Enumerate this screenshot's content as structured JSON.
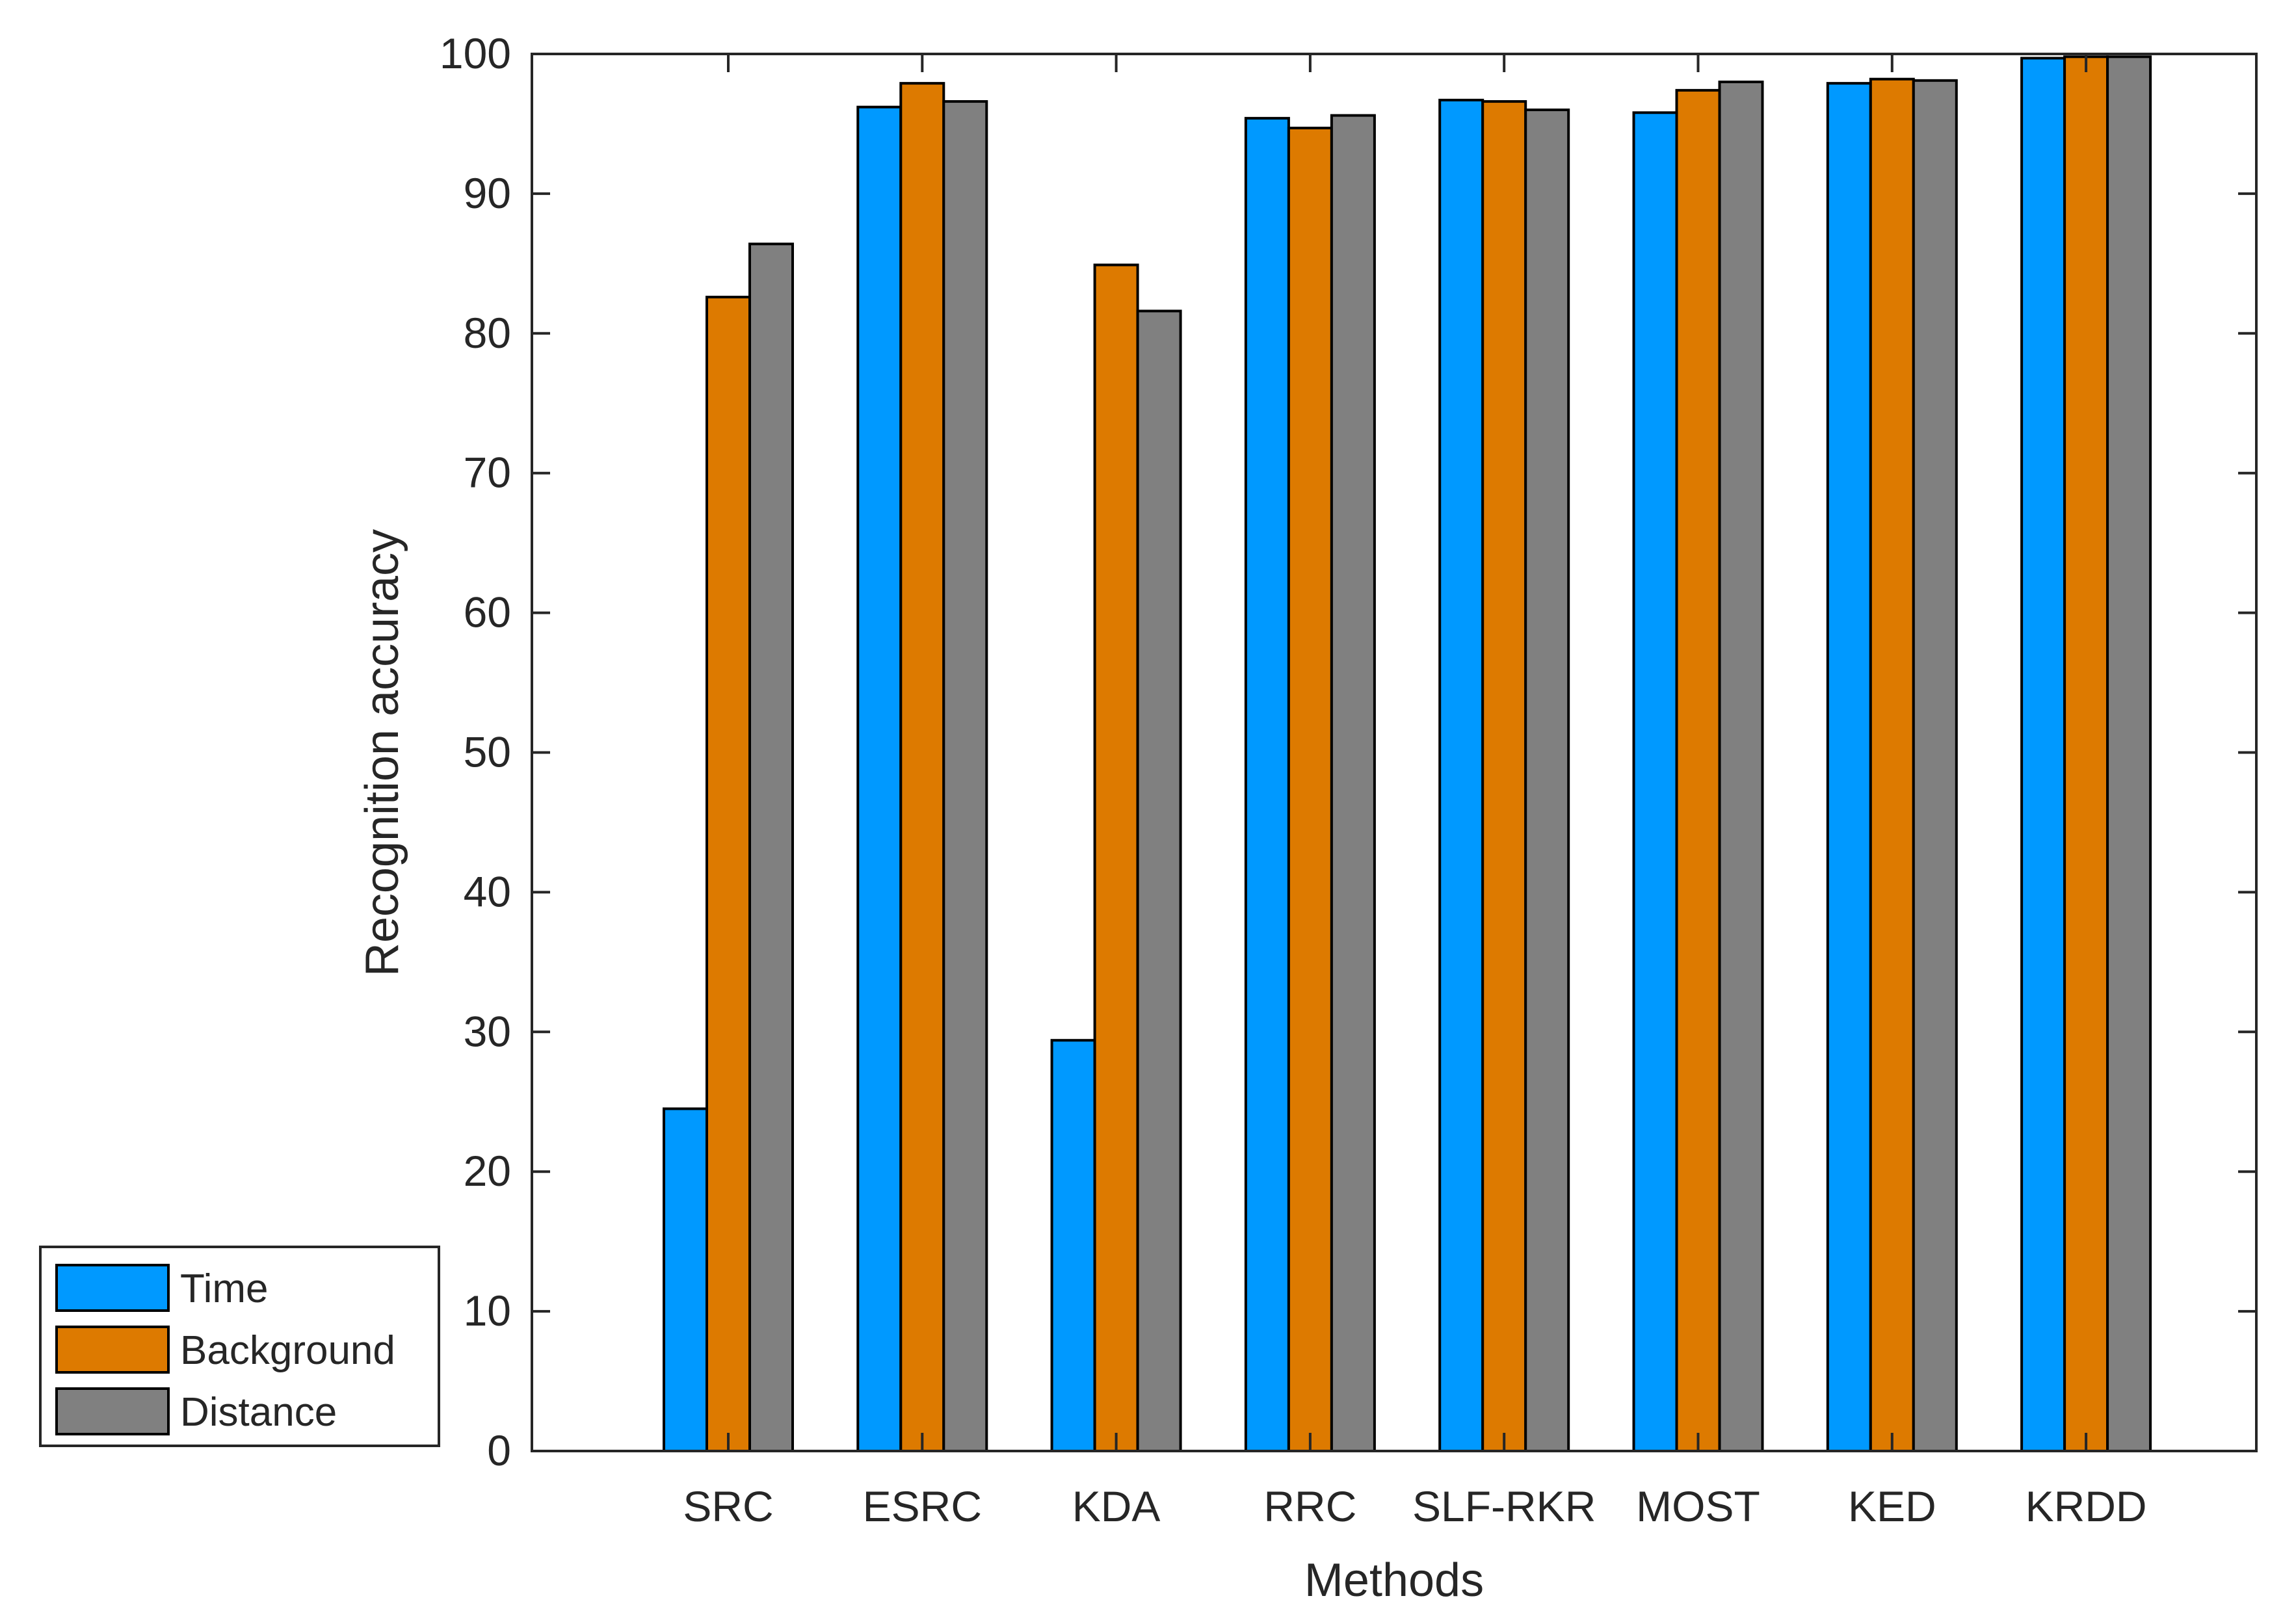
{
  "chart_data": {
    "type": "bar",
    "title": "",
    "xlabel": "Methods",
    "ylabel": "Recognition accuracy",
    "ylim": [
      0,
      100
    ],
    "yticks": [
      "0",
      "10",
      "20",
      "30",
      "40",
      "50",
      "60",
      "70",
      "80",
      "90",
      "100"
    ],
    "grid": false,
    "legend_position": "bottom-left-outside",
    "categories": [
      "SRC",
      "ESRC",
      "KDA",
      "RRC",
      "SLF-RKR",
      "MOST",
      "KED",
      "KRDD"
    ],
    "series": [
      {
        "name": "Time",
        "color": "#0099FF",
        "values": [
          24.5,
          96.2,
          29.4,
          95.4,
          96.7,
          95.8,
          97.9,
          99.7
        ]
      },
      {
        "name": "Background",
        "color": "#DD7A00",
        "values": [
          82.6,
          97.9,
          84.9,
          94.7,
          96.6,
          97.4,
          98.2,
          99.8
        ]
      },
      {
        "name": "Distance",
        "color": "#808080",
        "values": [
          86.4,
          96.6,
          81.6,
          95.6,
          96.0,
          98.0,
          98.1,
          99.8
        ]
      }
    ]
  }
}
